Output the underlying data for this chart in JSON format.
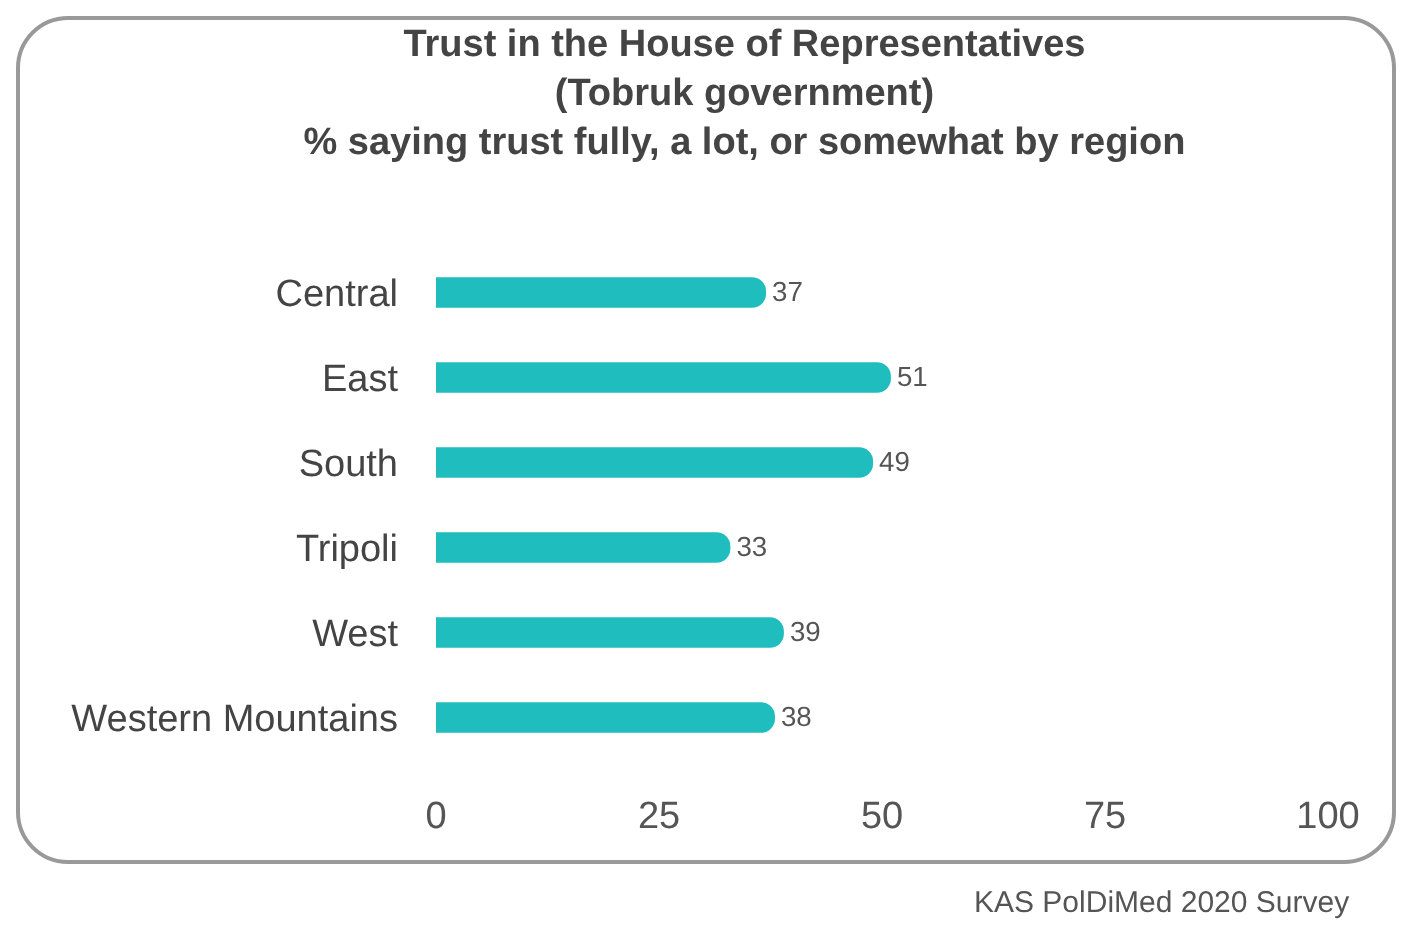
{
  "chart_data": {
    "type": "bar",
    "orientation": "horizontal",
    "title": "Trust in the House of Representatives\n(Tobruk government)\n% saying trust fully, a lot, or somewhat by region",
    "categories": [
      "Central",
      "East",
      "South",
      "Tripoli",
      "West",
      "Western Mountains"
    ],
    "values": [
      37,
      51,
      49,
      33,
      39,
      38
    ],
    "color": "#1fbdbd",
    "data_labels": true,
    "xlim": [
      0,
      100
    ],
    "xticks": [
      0,
      25,
      50,
      75,
      100
    ],
    "grid": false,
    "legend": false,
    "annotations": [
      "KAS PolDiMed 2020 Survey"
    ]
  }
}
